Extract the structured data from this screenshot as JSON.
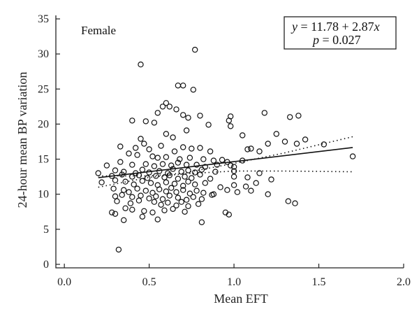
{
  "chart_data": {
    "type": "scatter",
    "annotation": "Female",
    "xlabel": "Mean EFT",
    "ylabel": "24-hour mean BP variation",
    "xlim": [
      -0.05,
      2.0
    ],
    "ylim": [
      -0.5,
      35.5
    ],
    "xticks": [
      "0.0",
      "0.5",
      "1.0",
      "1.5",
      "2.0"
    ],
    "yticks": [
      "0",
      "5",
      "10",
      "15",
      "20",
      "25",
      "30",
      "35"
    ],
    "equation": {
      "line1_lhs": "y",
      "line1_rhs": " = 11.78 + 2.87",
      "line1_var": "x",
      "line2_lhs": "p",
      "line2_rhs": " = 0.027"
    },
    "regression": {
      "intercept": 11.78,
      "slope": 2.87,
      "x_range": [
        0.2,
        1.7
      ]
    },
    "confidence_band": {
      "upper": [
        [
          0.2,
          12.6
        ],
        [
          0.5,
          12.6
        ],
        [
          0.7,
          13.0
        ],
        [
          1.0,
          14.4
        ],
        [
          1.3,
          15.9
        ],
        [
          1.7,
          18.2
        ]
      ],
      "lower": [
        [
          0.2,
          11.0
        ],
        [
          0.5,
          12.4
        ],
        [
          0.7,
          12.9
        ],
        [
          1.0,
          13.3
        ],
        [
          1.3,
          13.3
        ],
        [
          1.7,
          13.2
        ]
      ]
    },
    "points": [
      [
        0.32,
        2.1
      ],
      [
        0.45,
        28.5
      ],
      [
        0.77,
        30.6
      ],
      [
        0.67,
        25.5
      ],
      [
        0.7,
        25.5
      ],
      [
        0.76,
        24.9
      ],
      [
        0.6,
        23.0
      ],
      [
        0.58,
        22.5
      ],
      [
        0.62,
        22.5
      ],
      [
        0.66,
        22.1
      ],
      [
        0.55,
        21.6
      ],
      [
        0.7,
        21.3
      ],
      [
        0.8,
        21.2
      ],
      [
        0.98,
        21.1
      ],
      [
        1.18,
        21.6
      ],
      [
        1.33,
        21.0
      ],
      [
        1.38,
        21.2
      ],
      [
        0.73,
        20.9
      ],
      [
        0.97,
        20.5
      ],
      [
        0.4,
        20.5
      ],
      [
        0.48,
        20.4
      ],
      [
        0.53,
        20.2
      ],
      [
        0.85,
        19.9
      ],
      [
        0.72,
        19.1
      ],
      [
        0.98,
        19.7
      ],
      [
        1.05,
        18.4
      ],
      [
        1.25,
        18.6
      ],
      [
        1.3,
        17.5
      ],
      [
        1.2,
        17.2
      ],
      [
        1.42,
        17.8
      ],
      [
        1.37,
        17.2
      ],
      [
        1.53,
        17.1
      ],
      [
        0.6,
        18.6
      ],
      [
        0.64,
        18.1
      ],
      [
        0.45,
        17.9
      ],
      [
        0.47,
        17.2
      ],
      [
        0.33,
        16.8
      ],
      [
        0.42,
        16.6
      ],
      [
        0.5,
        16.4
      ],
      [
        0.57,
        16.9
      ],
      [
        0.65,
        16.1
      ],
      [
        0.7,
        16.7
      ],
      [
        0.75,
        16.5
      ],
      [
        0.8,
        16.6
      ],
      [
        0.86,
        16.1
      ],
      [
        1.08,
        16.4
      ],
      [
        1.1,
        16.5
      ],
      [
        1.15,
        16.1
      ],
      [
        1.7,
        15.4
      ],
      [
        0.38,
        15.8
      ],
      [
        0.43,
        15.6
      ],
      [
        0.52,
        15.4
      ],
      [
        0.55,
        15.2
      ],
      [
        0.6,
        15.3
      ],
      [
        0.68,
        15.0
      ],
      [
        0.74,
        15.2
      ],
      [
        0.82,
        15.0
      ],
      [
        0.88,
        14.8
      ],
      [
        0.93,
        14.9
      ],
      [
        0.96,
        14.6
      ],
      [
        1.05,
        14.8
      ],
      [
        0.25,
        14.1
      ],
      [
        0.33,
        14.6
      ],
      [
        0.4,
        14.2
      ],
      [
        0.48,
        14.3
      ],
      [
        0.53,
        14.0
      ],
      [
        0.58,
        14.3
      ],
      [
        0.63,
        14.1
      ],
      [
        0.67,
        14.5
      ],
      [
        0.72,
        14.2
      ],
      [
        0.78,
        14.2
      ],
      [
        0.83,
        13.9
      ],
      [
        0.9,
        14.2
      ],
      [
        0.98,
        14.1
      ],
      [
        1.0,
        13.9
      ],
      [
        0.2,
        13.0
      ],
      [
        0.3,
        13.4
      ],
      [
        0.35,
        13.2
      ],
      [
        0.42,
        13.0
      ],
      [
        0.46,
        13.5
      ],
      [
        0.5,
        13.1
      ],
      [
        0.56,
        13.3
      ],
      [
        0.61,
        13.0
      ],
      [
        0.64,
        13.6
      ],
      [
        0.69,
        13.2
      ],
      [
        0.73,
        13.4
      ],
      [
        0.77,
        13.1
      ],
      [
        0.81,
        13.5
      ],
      [
        0.89,
        13.2
      ],
      [
        1.0,
        13.3
      ],
      [
        1.15,
        13.0
      ],
      [
        0.28,
        12.6
      ],
      [
        0.34,
        12.8
      ],
      [
        0.4,
        12.5
      ],
      [
        0.44,
        12.7
      ],
      [
        0.49,
        12.3
      ],
      [
        0.54,
        12.6
      ],
      [
        0.59,
        12.4
      ],
      [
        0.62,
        12.7
      ],
      [
        0.67,
        12.2
      ],
      [
        0.71,
        12.5
      ],
      [
        0.75,
        12.3
      ],
      [
        0.8,
        12.8
      ],
      [
        0.86,
        12.2
      ],
      [
        1.0,
        12.5
      ],
      [
        1.08,
        12.4
      ],
      [
        1.22,
        12.1
      ],
      [
        0.22,
        11.7
      ],
      [
        0.3,
        12.0
      ],
      [
        0.36,
        11.8
      ],
      [
        0.41,
        11.4
      ],
      [
        0.46,
        11.9
      ],
      [
        0.51,
        11.6
      ],
      [
        0.55,
        11.3
      ],
      [
        0.6,
        11.7
      ],
      [
        0.65,
        11.5
      ],
      [
        0.7,
        11.2
      ],
      [
        0.73,
        11.8
      ],
      [
        0.77,
        11.4
      ],
      [
        0.83,
        11.6
      ],
      [
        0.92,
        11.0
      ],
      [
        1.0,
        11.3
      ],
      [
        1.07,
        11.1
      ],
      [
        1.13,
        11.6
      ],
      [
        0.29,
        10.8
      ],
      [
        0.35,
        10.6
      ],
      [
        0.38,
        10.3
      ],
      [
        0.43,
        10.8
      ],
      [
        0.48,
        10.5
      ],
      [
        0.52,
        10.2
      ],
      [
        0.56,
        10.7
      ],
      [
        0.6,
        10.4
      ],
      [
        0.63,
        10.9
      ],
      [
        0.66,
        10.3
      ],
      [
        0.7,
        10.6
      ],
      [
        0.74,
        10.1
      ],
      [
        0.78,
        10.5
      ],
      [
        0.82,
        10.2
      ],
      [
        0.88,
        10.0
      ],
      [
        0.96,
        10.6
      ],
      [
        1.02,
        10.3
      ],
      [
        1.1,
        10.5
      ],
      [
        1.2,
        10.0
      ],
      [
        0.3,
        9.7
      ],
      [
        0.34,
        9.9
      ],
      [
        0.4,
        9.6
      ],
      [
        0.45,
        9.8
      ],
      [
        0.5,
        9.4
      ],
      [
        0.54,
        9.7
      ],
      [
        0.58,
        9.3
      ],
      [
        0.62,
        9.8
      ],
      [
        0.67,
        9.5
      ],
      [
        0.72,
        9.2
      ],
      [
        0.76,
        9.6
      ],
      [
        0.81,
        9.3
      ],
      [
        0.87,
        9.9
      ],
      [
        0.31,
        9.0
      ],
      [
        0.39,
        8.7
      ],
      [
        0.44,
        9.1
      ],
      [
        0.53,
        8.9
      ],
      [
        0.57,
        8.5
      ],
      [
        0.61,
        8.8
      ],
      [
        0.66,
        8.4
      ],
      [
        0.69,
        8.9
      ],
      [
        0.73,
        8.3
      ],
      [
        0.79,
        8.6
      ],
      [
        1.32,
        9.0
      ],
      [
        1.36,
        8.7
      ],
      [
        0.36,
        8.0
      ],
      [
        0.4,
        7.8
      ],
      [
        0.47,
        7.6
      ],
      [
        0.52,
        7.4
      ],
      [
        0.59,
        7.7
      ],
      [
        0.64,
        7.9
      ],
      [
        0.71,
        7.5
      ],
      [
        0.28,
        7.4
      ],
      [
        0.3,
        7.2
      ],
      [
        0.95,
        7.4
      ],
      [
        0.97,
        7.1
      ],
      [
        0.35,
        6.3
      ],
      [
        0.55,
        6.4
      ],
      [
        0.81,
        6.0
      ],
      [
        0.46,
        6.8
      ]
    ]
  }
}
